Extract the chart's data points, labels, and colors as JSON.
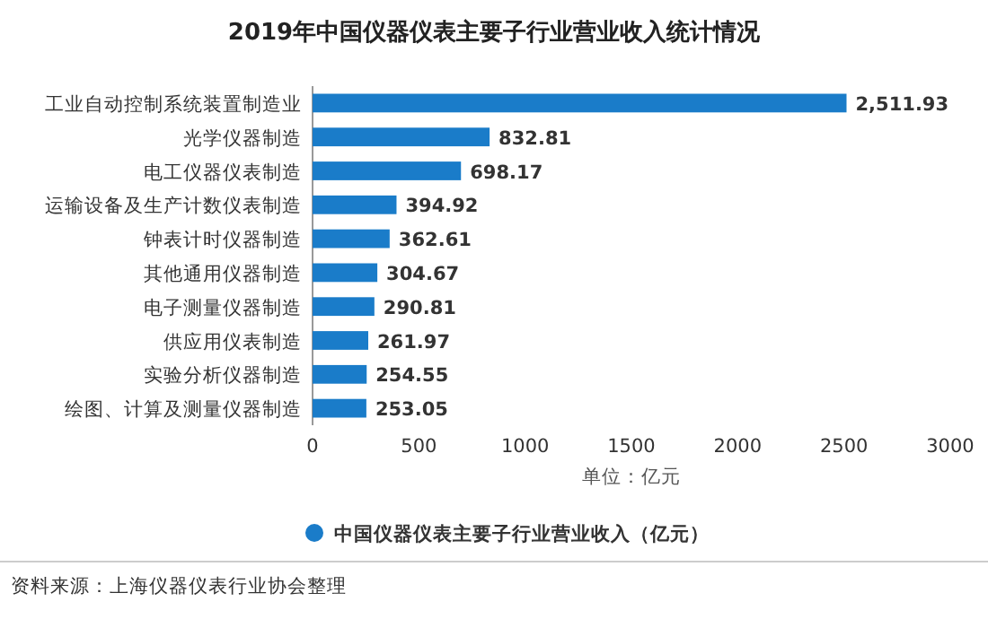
{
  "chart_data": {
    "type": "bar",
    "orientation": "horizontal",
    "title": "2019年中国仪器仪表主要子行业营业收入统计情况",
    "categories": [
      "工业自动控制系统装置制造业",
      "光学仪器制造",
      "电工仪器仪表制造",
      "运输设备及生产计数仪表制造",
      "钟表计时仪器制造",
      "其他通用仪器制造",
      "电子测量仪器制造",
      "供应用仪表制造",
      "实验分析仪器制造",
      "绘图、计算及测量仪器制造"
    ],
    "series": [
      {
        "name": "中国仪器仪表主要子行业营业收入（亿元）",
        "color": "#1a7cc9",
        "values": [
          2511.93,
          832.81,
          698.17,
          394.92,
          362.61,
          304.67,
          290.81,
          261.97,
          254.55,
          253.05
        ]
      }
    ],
    "value_labels": [
      "2,511.93",
      "832.81",
      "698.17",
      "394.92",
      "362.61",
      "304.67",
      "290.81",
      "261.97",
      "254.55",
      "253.05"
    ],
    "xlim": [
      0,
      3000
    ],
    "xticks": [
      0,
      500,
      1000,
      1500,
      2000,
      2500,
      3000
    ],
    "xlabel": "单位：亿元",
    "legend": "bottom",
    "annotations": [
      "资料来源：上海仪器仪表行业协会整理"
    ]
  }
}
